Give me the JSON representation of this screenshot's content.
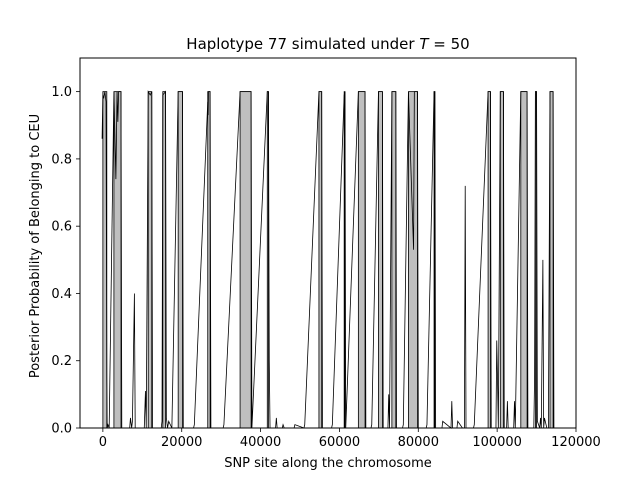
{
  "chart_data": {
    "type": "line",
    "title": "Haplotype 77 simulated under ",
    "title_math_var": "T",
    "title_math_rest": " =  50",
    "xlabel": "SNP site along the chromosome",
    "ylabel": "Posterior Probability of Belonging to CEU",
    "xlim": [
      -5800,
      120000
    ],
    "ylim": [
      0,
      1.1
    ],
    "xticks": [
      0,
      20000,
      40000,
      60000,
      80000,
      100000,
      120000
    ],
    "xtick_labels": [
      "0",
      "20000",
      "40000",
      "60000",
      "80000",
      "100000",
      "120000"
    ],
    "yticks": [
      0.0,
      0.2,
      0.4,
      0.6,
      0.8,
      1.0
    ],
    "ytick_labels": [
      "0.0",
      "0.2",
      "0.4",
      "0.6",
      "0.8",
      "1.0"
    ],
    "grid": false,
    "line_color": "#000000",
    "shade_color": "#bfbfbf",
    "ceu_regions": [
      [
        0,
        1000
      ],
      [
        2800,
        4600
      ],
      [
        11500,
        12400
      ],
      [
        15200,
        15900
      ],
      [
        19100,
        20200
      ],
      [
        26600,
        27200
      ],
      [
        34800,
        37600
      ],
      [
        41700,
        42000
      ],
      [
        54800,
        55500
      ],
      [
        61200,
        61400
      ],
      [
        64800,
        66500
      ],
      [
        69900,
        70900
      ],
      [
        73300,
        74300
      ],
      [
        77500,
        79800
      ],
      [
        84000,
        84200
      ],
      [
        97700,
        98300
      ],
      [
        100800,
        101600
      ],
      [
        106000,
        107600
      ],
      [
        109700,
        110000
      ],
      [
        113400,
        114200
      ]
    ],
    "posterior_curve": {
      "x": [
        -200,
        0,
        200,
        500,
        800,
        1000,
        1100,
        1300,
        1600,
        2800,
        3300,
        3600,
        3800,
        4000,
        4300,
        4600,
        4800,
        6800,
        7000,
        7300,
        7500,
        8000,
        8200,
        8400,
        10500,
        10800,
        11000,
        11500,
        12000,
        12400,
        12600,
        14800,
        15000,
        15200,
        15900,
        16100,
        16400,
        16700,
        17500,
        19100,
        20200,
        20400,
        23000,
        23200,
        26600,
        26700,
        26800,
        27200,
        27400,
        30500,
        30700,
        34800,
        37600,
        37800,
        41700,
        42000,
        42200,
        42400,
        42600,
        43800,
        44000,
        44200,
        45500,
        45700,
        46000,
        48500,
        48700,
        51000,
        51200,
        54800,
        55500,
        55700,
        58000,
        58200,
        61200,
        61400,
        61600,
        64800,
        66500,
        66700,
        68000,
        68200,
        69900,
        70900,
        71100,
        72300,
        72500,
        72700,
        73300,
        74300,
        74500,
        76000,
        76200,
        77500,
        78800,
        79000,
        79400,
        79800,
        80000,
        82000,
        82200,
        84000,
        84200,
        84400,
        86000,
        86200,
        88300,
        88500,
        88700,
        89800,
        90000,
        91200,
        91700,
        91900,
        92100,
        94000,
        94200,
        97700,
        98300,
        98500,
        99700,
        99900,
        100100,
        100300,
        100800,
        101600,
        101800,
        102400,
        102600,
        102800,
        104200,
        104400,
        104600,
        106000,
        107600,
        107800,
        108200,
        109300,
        109500,
        109700,
        110000,
        110200,
        110800,
        111000,
        111200,
        111600,
        111800,
        112000,
        112600,
        113000,
        113400,
        114200,
        114400,
        116000
      ],
      "y": [
        0.86,
        0.99,
        0.98,
        1.0,
        0.97,
        0.15,
        0.0,
        0.01,
        0.0,
        1.0,
        0.74,
        1.0,
        0.91,
        1.0,
        1.0,
        1.0,
        0.0,
        0.0,
        0.03,
        0.0,
        0.02,
        0.4,
        0.0,
        0.0,
        0.0,
        0.11,
        0.0,
        1.0,
        0.99,
        1.0,
        0.0,
        0.0,
        0.02,
        0.99,
        1.0,
        0.03,
        0.0,
        0.02,
        0.0,
        1.0,
        1.0,
        0.0,
        0.0,
        0.01,
        0.97,
        0.93,
        1.0,
        1.0,
        0.0,
        0.0,
        0.01,
        1.0,
        1.0,
        0.0,
        1.0,
        1.0,
        0.2,
        0.0,
        0.0,
        0.0,
        0.03,
        0.0,
        0.0,
        0.01,
        0.0,
        0.0,
        0.01,
        0.0,
        0.01,
        1.0,
        1.0,
        0.0,
        0.0,
        0.01,
        0.99,
        1.0,
        0.0,
        1.0,
        1.0,
        0.0,
        0.0,
        0.01,
        1.0,
        1.0,
        0.0,
        0.0,
        0.1,
        0.0,
        1.0,
        1.0,
        0.0,
        0.0,
        0.01,
        1.0,
        0.53,
        1.0,
        1.0,
        1.0,
        0.0,
        0.0,
        0.01,
        1.0,
        1.0,
        0.0,
        0.0,
        0.02,
        0.0,
        0.08,
        0.0,
        0.0,
        0.02,
        0.0,
        0.0,
        0.72,
        0.0,
        0.0,
        0.01,
        1.0,
        1.0,
        0.0,
        0.0,
        0.26,
        0.14,
        0.0,
        1.0,
        1.0,
        0.0,
        0.0,
        0.08,
        0.0,
        0.0,
        0.08,
        0.0,
        1.0,
        1.0,
        0.0,
        0.0,
        0.0,
        0.15,
        1.0,
        1.0,
        0.02,
        0.0,
        0.03,
        0.0,
        0.5,
        0.0,
        0.03,
        0.0,
        0.0,
        1.0,
        1.0,
        0.0,
        0.0
      ]
    }
  }
}
